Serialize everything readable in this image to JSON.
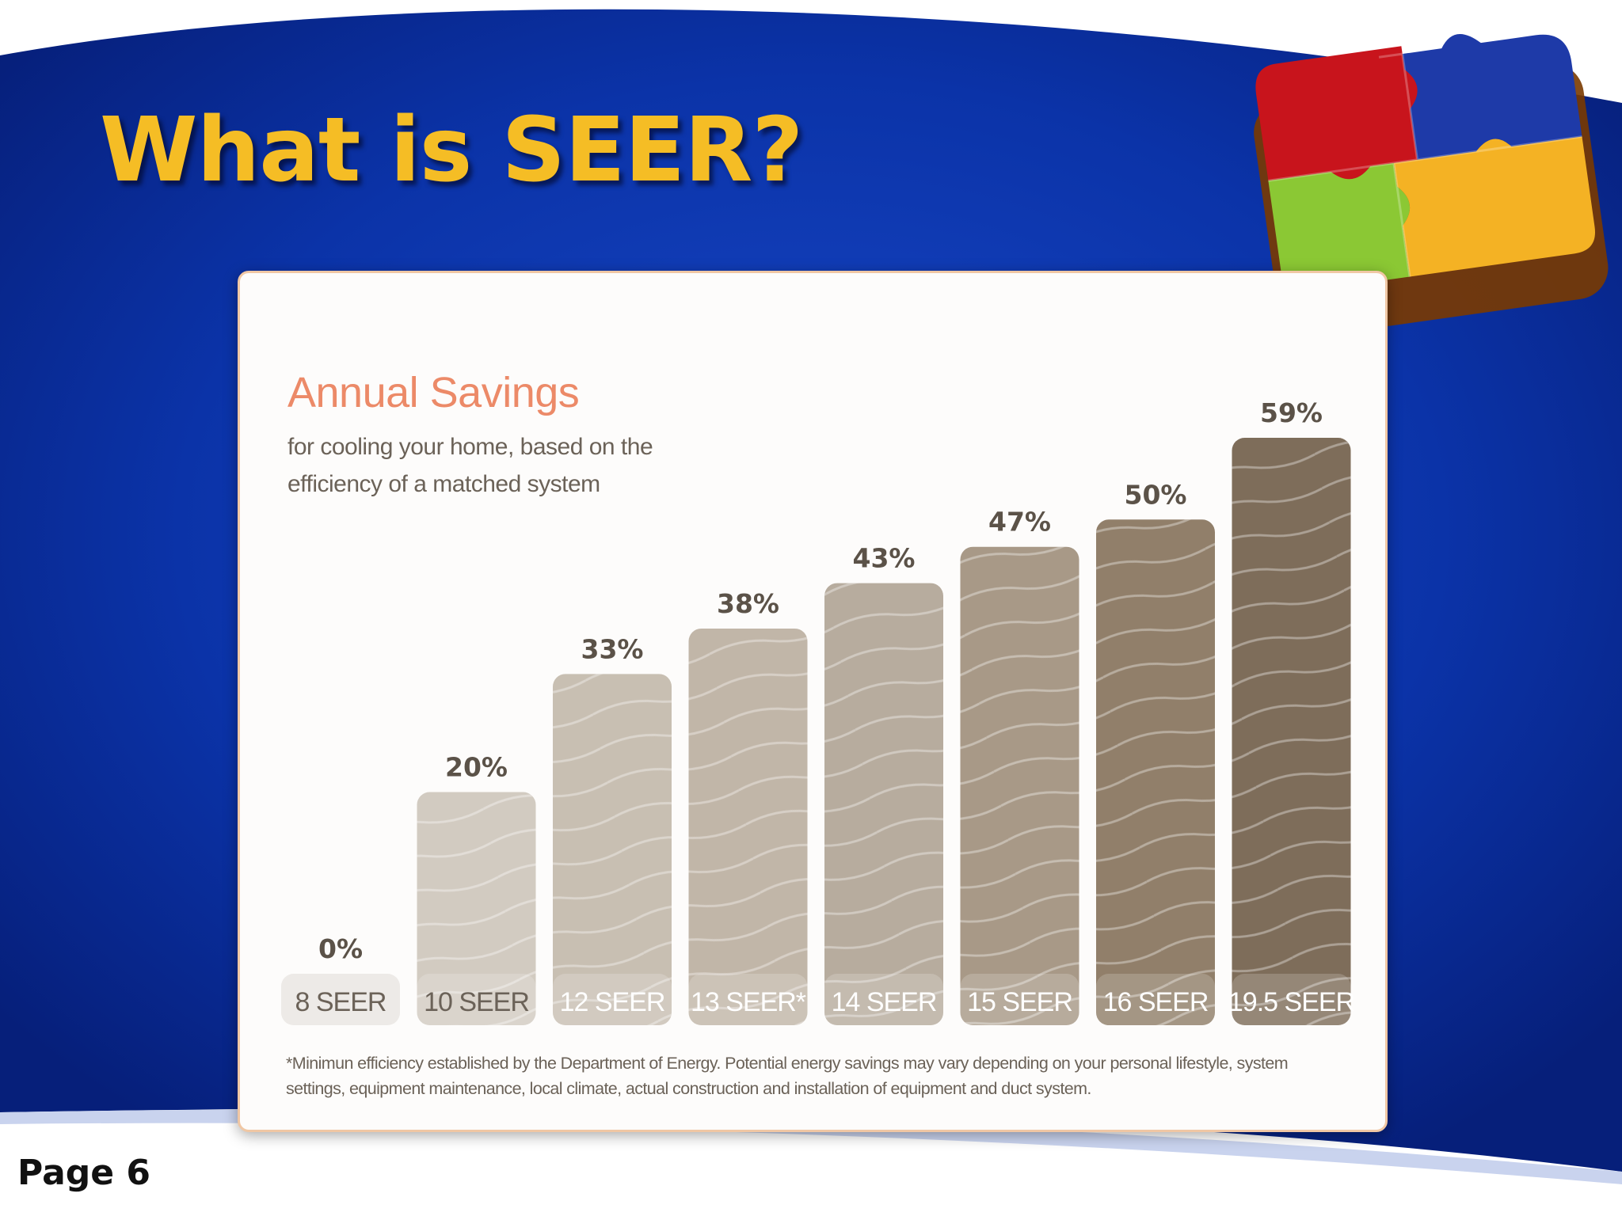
{
  "slide": {
    "title": "What is SEER?",
    "page_label": "Page 6",
    "colors": {
      "background_blue": "#0a2e9c",
      "title_yellow": "#f5bd25",
      "card_border": "#f0c7a4"
    },
    "decoration": "puzzle-pieces-icon"
  },
  "chart_data": {
    "type": "bar",
    "title": "Annual Savings",
    "subtitle": "for cooling your home, based on the efficiency of a matched system",
    "categories": [
      "8 SEER",
      "10 SEER",
      "12 SEER",
      "13 SEER*",
      "14 SEER",
      "15 SEER",
      "16 SEER",
      "19.5 SEER"
    ],
    "values": [
      0,
      20,
      33,
      38,
      43,
      47,
      50,
      59
    ],
    "data_labels": [
      "0%",
      "20%",
      "33%",
      "38%",
      "43%",
      "47%",
      "50%",
      "59%"
    ],
    "value_unit": "%",
    "ylim": [
      0,
      59
    ],
    "grid": false,
    "legend": "none",
    "bar_colors": [
      "#e3dfda",
      "#d2cbc1",
      "#c8bfb2",
      "#c1b6a8",
      "#b7ac9e",
      "#a89987",
      "#917f6a",
      "#7e6d5a"
    ],
    "footnote": "*Minimun efficiency established by the Department of Energy. Potential energy savings may vary depending on your personal lifestyle, system settings, equipment maintenance, local climate, actual construction and installation of equipment and duct system."
  }
}
